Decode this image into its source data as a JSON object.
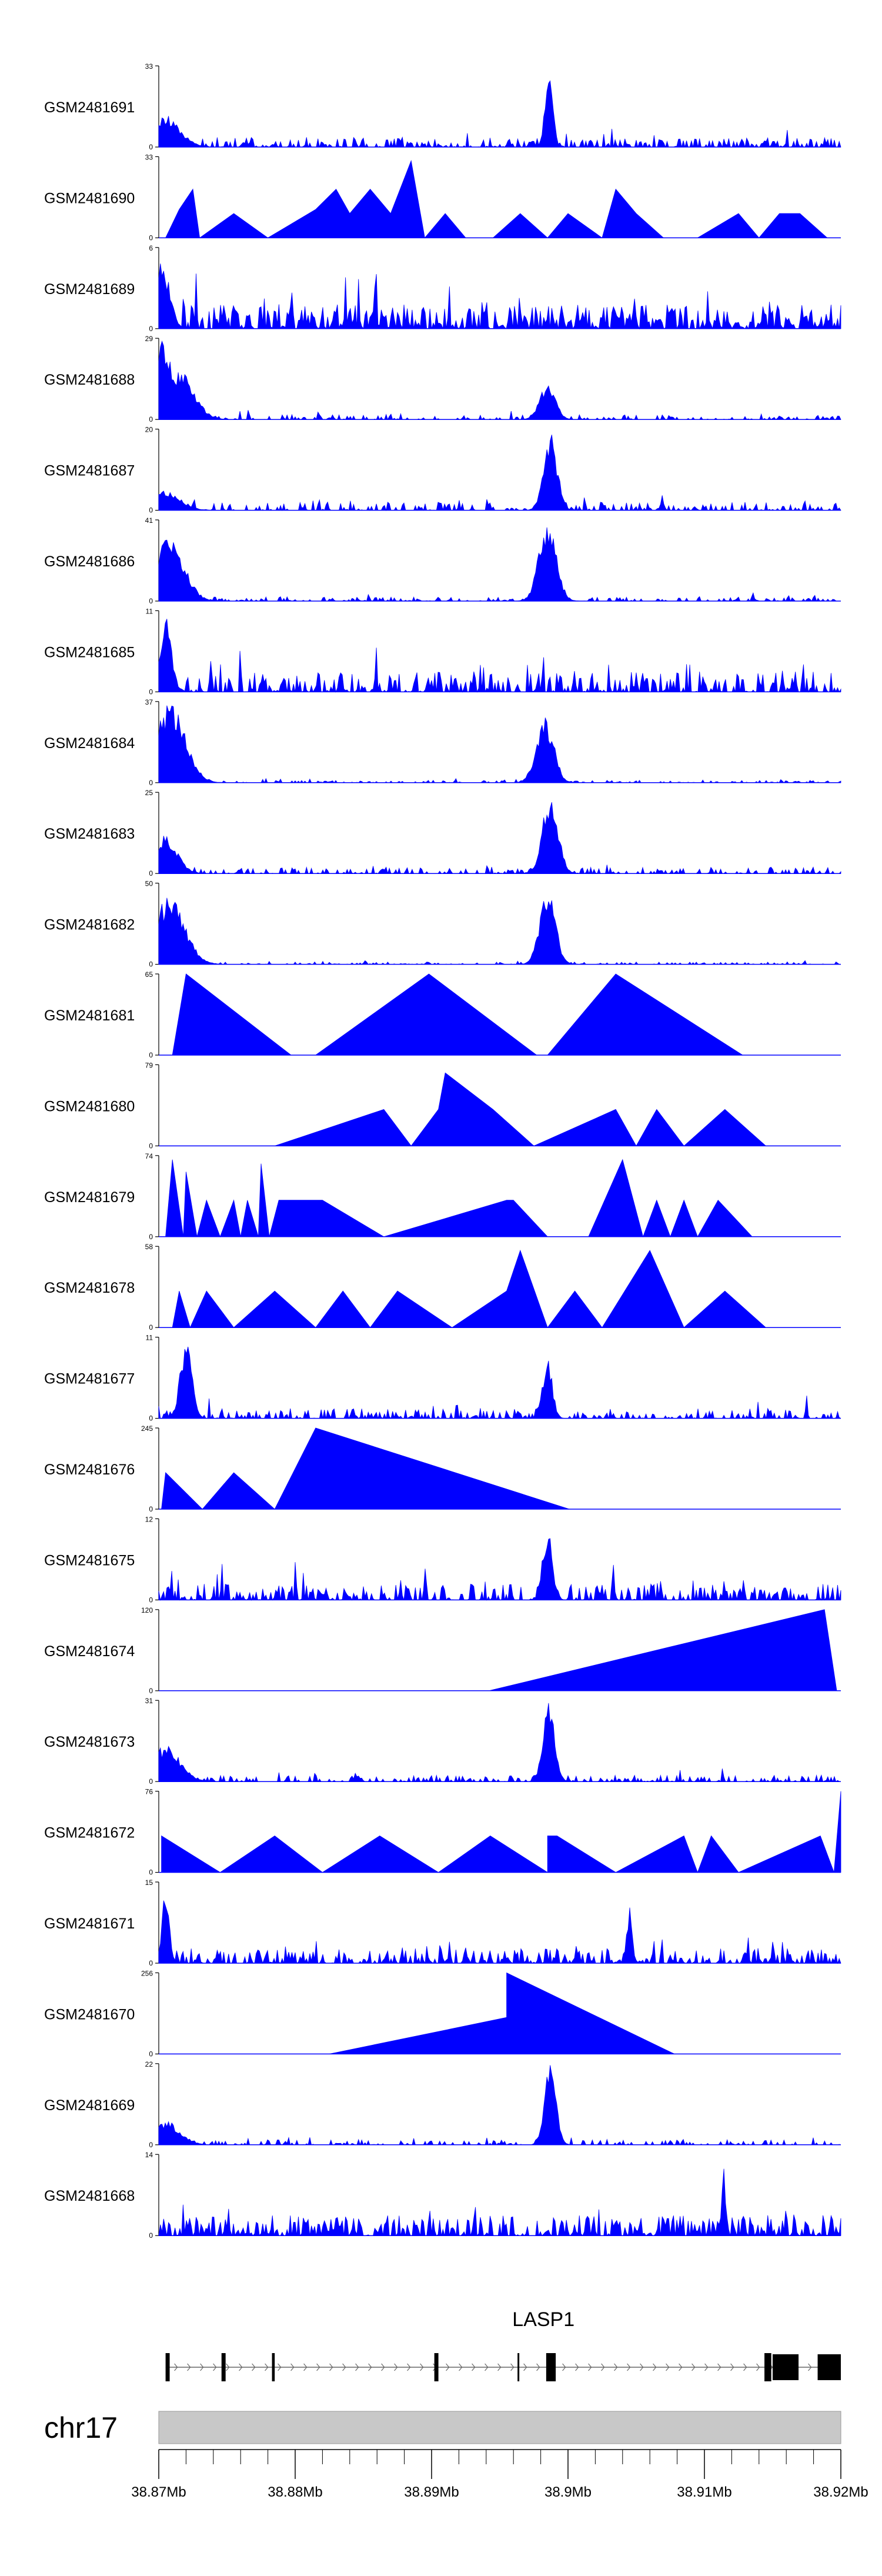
{
  "chart_data": {
    "type": "area",
    "title": "",
    "chromosome": "chr17",
    "gene": "LASP1",
    "xlabel": "",
    "xlim_mb": [
      38.87,
      38.92
    ],
    "x_ticks": [
      "38.87Mb",
      "38.88Mb",
      "38.89Mb",
      "38.9Mb",
      "38.91Mb",
      "38.92Mb"
    ],
    "x_tick_values_mb": [
      38.87,
      38.88,
      38.89,
      38.9,
      38.91,
      38.92
    ],
    "gene_model": {
      "strand": "+",
      "start_mb": 38.8705,
      "end_mb": 38.92,
      "exons_mb": [
        [
          38.8705,
          38.8708
        ],
        [
          38.8746,
          38.8749
        ],
        [
          38.8783,
          38.8785
        ],
        [
          38.8902,
          38.8905
        ],
        [
          38.8963,
          38.8964
        ],
        [
          38.8984,
          38.8991
        ],
        [
          38.9144,
          38.9149
        ],
        [
          38.915,
          38.9169
        ],
        [
          38.9183,
          38.92
        ]
      ]
    },
    "series": [
      {
        "name": "GSM2481691",
        "ymax": 33,
        "y_tick_labels": [
          "0",
          "33"
        ],
        "style": "dense",
        "seed": 11,
        "density": 0.6,
        "base": 0.12,
        "peaks": [
          [
            38.8986,
            1.0,
            0.0004
          ],
          [
            38.8705,
            0.4,
            0.0015
          ]
        ]
      },
      {
        "name": "GSM2481690",
        "ymax": 33,
        "y_tick_labels": [
          "0",
          "33"
        ],
        "style": "sparse",
        "points": [
          [
            38.8705,
            0
          ],
          [
            38.8715,
            0.35
          ],
          [
            38.8725,
            0.6
          ],
          [
            38.873,
            0
          ],
          [
            38.8755,
            0.3
          ],
          [
            38.878,
            0
          ],
          [
            38.8815,
            0.35
          ],
          [
            38.883,
            0.6
          ],
          [
            38.884,
            0.3
          ],
          [
            38.8855,
            0.6
          ],
          [
            38.887,
            0.3
          ],
          [
            38.8885,
            0.95
          ],
          [
            38.8895,
            0
          ],
          [
            38.891,
            0.3
          ],
          [
            38.8925,
            0
          ],
          [
            38.8945,
            0
          ],
          [
            38.8965,
            0.3
          ],
          [
            38.8985,
            0
          ],
          [
            38.9,
            0.3
          ],
          [
            38.9025,
            0
          ],
          [
            38.9035,
            0.6
          ],
          [
            38.905,
            0.3
          ],
          [
            38.907,
            0
          ],
          [
            38.9095,
            0
          ],
          [
            38.9125,
            0.3
          ],
          [
            38.914,
            0
          ],
          [
            38.9155,
            0.3
          ],
          [
            38.917,
            0.3
          ],
          [
            38.919,
            0
          ]
        ]
      },
      {
        "name": "GSM2481689",
        "ymax": 6,
        "y_tick_labels": [
          "0",
          "6"
        ],
        "style": "dense",
        "seed": 23,
        "density": 0.9,
        "base": 0.3,
        "peaks": [
          [
            38.8702,
            0.9,
            0.0008
          ]
        ]
      },
      {
        "name": "GSM2481688",
        "ymax": 29,
        "y_tick_labels": [
          "0",
          "29"
        ],
        "style": "dense",
        "seed": 31,
        "density": 0.5,
        "base": 0.06,
        "peaks": [
          [
            38.8702,
            1.0,
            0.0012
          ],
          [
            38.8715,
            0.6,
            0.0015
          ],
          [
            38.8985,
            0.45,
            0.0008
          ]
        ]
      },
      {
        "name": "GSM2481687",
        "ymax": 20,
        "y_tick_labels": [
          "0",
          "20"
        ],
        "style": "dense",
        "seed": 37,
        "density": 0.5,
        "base": 0.1,
        "peaks": [
          [
            38.8987,
            1.0,
            0.0007
          ],
          [
            38.8705,
            0.25,
            0.0015
          ]
        ]
      },
      {
        "name": "GSM2481686",
        "ymax": 41,
        "y_tick_labels": [
          "0",
          "41"
        ],
        "style": "dense",
        "seed": 41,
        "density": 0.5,
        "base": 0.05,
        "peaks": [
          [
            38.8708,
            0.8,
            0.0015
          ],
          [
            38.8985,
            1.0,
            0.0009
          ]
        ]
      },
      {
        "name": "GSM2481685",
        "ymax": 11,
        "y_tick_labels": [
          "0",
          "11"
        ],
        "style": "dense",
        "seed": 43,
        "density": 0.7,
        "base": 0.25,
        "peaks": [
          [
            38.8705,
            1.0,
            0.0006
          ]
        ]
      },
      {
        "name": "GSM2481684",
        "ymax": 37,
        "y_tick_labels": [
          "0",
          "37"
        ],
        "style": "dense",
        "seed": 47,
        "density": 0.4,
        "base": 0.03,
        "peaks": [
          [
            38.8708,
            1.0,
            0.0016
          ],
          [
            38.8983,
            0.85,
            0.0009
          ]
        ]
      },
      {
        "name": "GSM2481683",
        "ymax": 25,
        "y_tick_labels": [
          "0",
          "25"
        ],
        "style": "dense",
        "seed": 53,
        "density": 0.5,
        "base": 0.08,
        "peaks": [
          [
            38.8987,
            1.0,
            0.0008
          ],
          [
            38.8705,
            0.5,
            0.0012
          ]
        ]
      },
      {
        "name": "GSM2481682",
        "ymax": 50,
        "y_tick_labels": [
          "0",
          "50"
        ],
        "style": "dense",
        "seed": 59,
        "density": 0.4,
        "base": 0.03,
        "peaks": [
          [
            38.8708,
            0.85,
            0.0016
          ],
          [
            38.8985,
            1.0,
            0.0008
          ]
        ]
      },
      {
        "name": "GSM2481681",
        "ymax": 65,
        "y_tick_labels": [
          "0",
          "65"
        ],
        "style": "sparse",
        "points": [
          [
            38.871,
            0
          ],
          [
            38.872,
            1.0
          ],
          [
            38.8797,
            0
          ],
          [
            38.8815,
            0
          ],
          [
            38.8898,
            1.0
          ],
          [
            38.8977,
            0
          ],
          [
            38.8985,
            0
          ],
          [
            38.9035,
            1.0
          ],
          [
            38.9128,
            0
          ]
        ]
      },
      {
        "name": "GSM2481680",
        "ymax": 79,
        "y_tick_labels": [
          "0",
          "79"
        ],
        "style": "sparse",
        "points": [
          [
            38.8785,
            0
          ],
          [
            38.8865,
            0.45
          ],
          [
            38.8885,
            0
          ],
          [
            38.8905,
            0.45
          ],
          [
            38.891,
            0.9
          ],
          [
            38.8945,
            0.45
          ],
          [
            38.8975,
            0
          ],
          [
            38.9035,
            0.45
          ],
          [
            38.905,
            0
          ],
          [
            38.9065,
            0.45
          ],
          [
            38.9085,
            0
          ],
          [
            38.9115,
            0.45
          ],
          [
            38.9145,
            0
          ]
        ]
      },
      {
        "name": "GSM2481679",
        "ymax": 74,
        "y_tick_labels": [
          "0",
          "74"
        ],
        "style": "sparse",
        "points": [
          [
            38.8705,
            0
          ],
          [
            38.871,
            0.95
          ],
          [
            38.8718,
            0
          ],
          [
            38.872,
            0.8
          ],
          [
            38.8728,
            0
          ],
          [
            38.8735,
            0.45
          ],
          [
            38.8745,
            0
          ],
          [
            38.8755,
            0.45
          ],
          [
            38.876,
            0
          ],
          [
            38.8765,
            0.45
          ],
          [
            38.8773,
            0
          ],
          [
            38.8775,
            0.9
          ],
          [
            38.8781,
            0
          ],
          [
            38.8788,
            0.45
          ],
          [
            38.882,
            0.45
          ],
          [
            38.8865,
            0
          ],
          [
            38.8955,
            0.45
          ],
          [
            38.896,
            0.45
          ],
          [
            38.8985,
            0
          ],
          [
            38.9015,
            0
          ],
          [
            38.904,
            0.95
          ],
          [
            38.9055,
            0
          ],
          [
            38.9065,
            0.45
          ],
          [
            38.9075,
            0
          ],
          [
            38.9085,
            0.45
          ],
          [
            38.9095,
            0
          ],
          [
            38.911,
            0.45
          ],
          [
            38.9135,
            0
          ]
        ]
      },
      {
        "name": "GSM2481678",
        "ymax": 58,
        "y_tick_labels": [
          "0",
          "58"
        ],
        "style": "sparse",
        "points": [
          [
            38.871,
            0
          ],
          [
            38.8715,
            0.45
          ],
          [
            38.8723,
            0
          ],
          [
            38.8735,
            0.45
          ],
          [
            38.8755,
            0
          ],
          [
            38.8785,
            0.45
          ],
          [
            38.8815,
            0
          ],
          [
            38.8835,
            0.45
          ],
          [
            38.8855,
            0
          ],
          [
            38.8875,
            0.45
          ],
          [
            38.8915,
            0
          ],
          [
            38.8955,
            0.45
          ],
          [
            38.8965,
            0.95
          ],
          [
            38.8985,
            0
          ],
          [
            38.9005,
            0.45
          ],
          [
            38.9025,
            0
          ],
          [
            38.906,
            0.95
          ],
          [
            38.9085,
            0
          ],
          [
            38.9115,
            0.45
          ],
          [
            38.9145,
            0
          ]
        ]
      },
      {
        "name": "GSM2481677",
        "ymax": 11,
        "y_tick_labels": [
          "0",
          "11"
        ],
        "style": "dense",
        "seed": 61,
        "density": 0.6,
        "base": 0.12,
        "peaks": [
          [
            38.872,
            1.0,
            0.0006
          ],
          [
            38.8985,
            0.75,
            0.0005
          ]
        ]
      },
      {
        "name": "GSM2481676",
        "ymax": 245,
        "y_tick_labels": [
          "0",
          "245"
        ],
        "style": "sparse",
        "points": [
          [
            38.8702,
            0
          ],
          [
            38.8705,
            0.45
          ],
          [
            38.8732,
            0
          ],
          [
            38.8755,
            0.45
          ],
          [
            38.8785,
            0
          ],
          [
            38.8815,
            1.0
          ],
          [
            38.9001,
            0
          ]
        ]
      },
      {
        "name": "GSM2481675",
        "ymax": 12,
        "y_tick_labels": [
          "0",
          "12"
        ],
        "style": "dense",
        "seed": 67,
        "density": 0.7,
        "base": 0.2,
        "peaks": [
          [
            38.8985,
            0.95,
            0.0005
          ]
        ]
      },
      {
        "name": "GSM2481674",
        "ymax": 120,
        "y_tick_labels": [
          "0",
          "120"
        ],
        "style": "sparse",
        "points": [
          [
            38.8942,
            0
          ],
          [
            38.9188,
            1.0
          ],
          [
            38.9197,
            0
          ]
        ]
      },
      {
        "name": "GSM2481673",
        "ymax": 31,
        "y_tick_labels": [
          "0",
          "31"
        ],
        "style": "dense",
        "seed": 71,
        "density": 0.5,
        "base": 0.08,
        "peaks": [
          [
            38.8986,
            1.0,
            0.0006
          ],
          [
            38.8705,
            0.45,
            0.0015
          ]
        ]
      },
      {
        "name": "GSM2481672",
        "ymax": 76,
        "y_tick_labels": [
          "0",
          "76"
        ],
        "style": "sparse",
        "points": [
          [
            38.8702,
            0
          ],
          [
            38.8702,
            0.45
          ],
          [
            38.8745,
            0
          ],
          [
            38.8785,
            0.45
          ],
          [
            38.882,
            0
          ],
          [
            38.8862,
            0.45
          ],
          [
            38.8905,
            0
          ],
          [
            38.8943,
            0.45
          ],
          [
            38.8985,
            0
          ],
          [
            38.8985,
            0.45
          ],
          [
            38.8992,
            0.45
          ],
          [
            38.9035,
            0
          ],
          [
            38.9085,
            0.45
          ],
          [
            38.9095,
            0
          ],
          [
            38.9105,
            0.45
          ],
          [
            38.9125,
            0
          ],
          [
            38.9185,
            0.45
          ],
          [
            38.9195,
            0
          ],
          [
            38.92,
            1.0
          ],
          [
            38.92,
            0
          ]
        ]
      },
      {
        "name": "GSM2481671",
        "ymax": 15,
        "y_tick_labels": [
          "0",
          "15"
        ],
        "style": "dense",
        "seed": 73,
        "density": 0.7,
        "base": 0.18,
        "peaks": [
          [
            38.8705,
            0.9,
            0.0004
          ],
          [
            38.9045,
            0.7,
            0.0003
          ]
        ]
      },
      {
        "name": "GSM2481670",
        "ymax": 256,
        "y_tick_labels": [
          "0",
          "256"
        ],
        "style": "sparse",
        "points": [
          [
            38.8825,
            0
          ],
          [
            38.8955,
            0.45
          ],
          [
            38.8955,
            0
          ],
          [
            38.8955,
            1.0
          ],
          [
            38.9078,
            0
          ]
        ]
      },
      {
        "name": "GSM2481669",
        "ymax": 22,
        "y_tick_labels": [
          "0",
          "22"
        ],
        "style": "dense",
        "seed": 79,
        "density": 0.4,
        "base": 0.06,
        "peaks": [
          [
            38.8987,
            1.0,
            0.0006
          ],
          [
            38.8705,
            0.3,
            0.0015
          ]
        ]
      },
      {
        "name": "GSM2481668",
        "ymax": 14,
        "y_tick_labels": [
          "0",
          "14"
        ],
        "style": "dense",
        "seed": 83,
        "density": 0.8,
        "base": 0.25,
        "peaks": [
          [
            38.9114,
            1.0,
            0.0002
          ]
        ]
      }
    ]
  }
}
